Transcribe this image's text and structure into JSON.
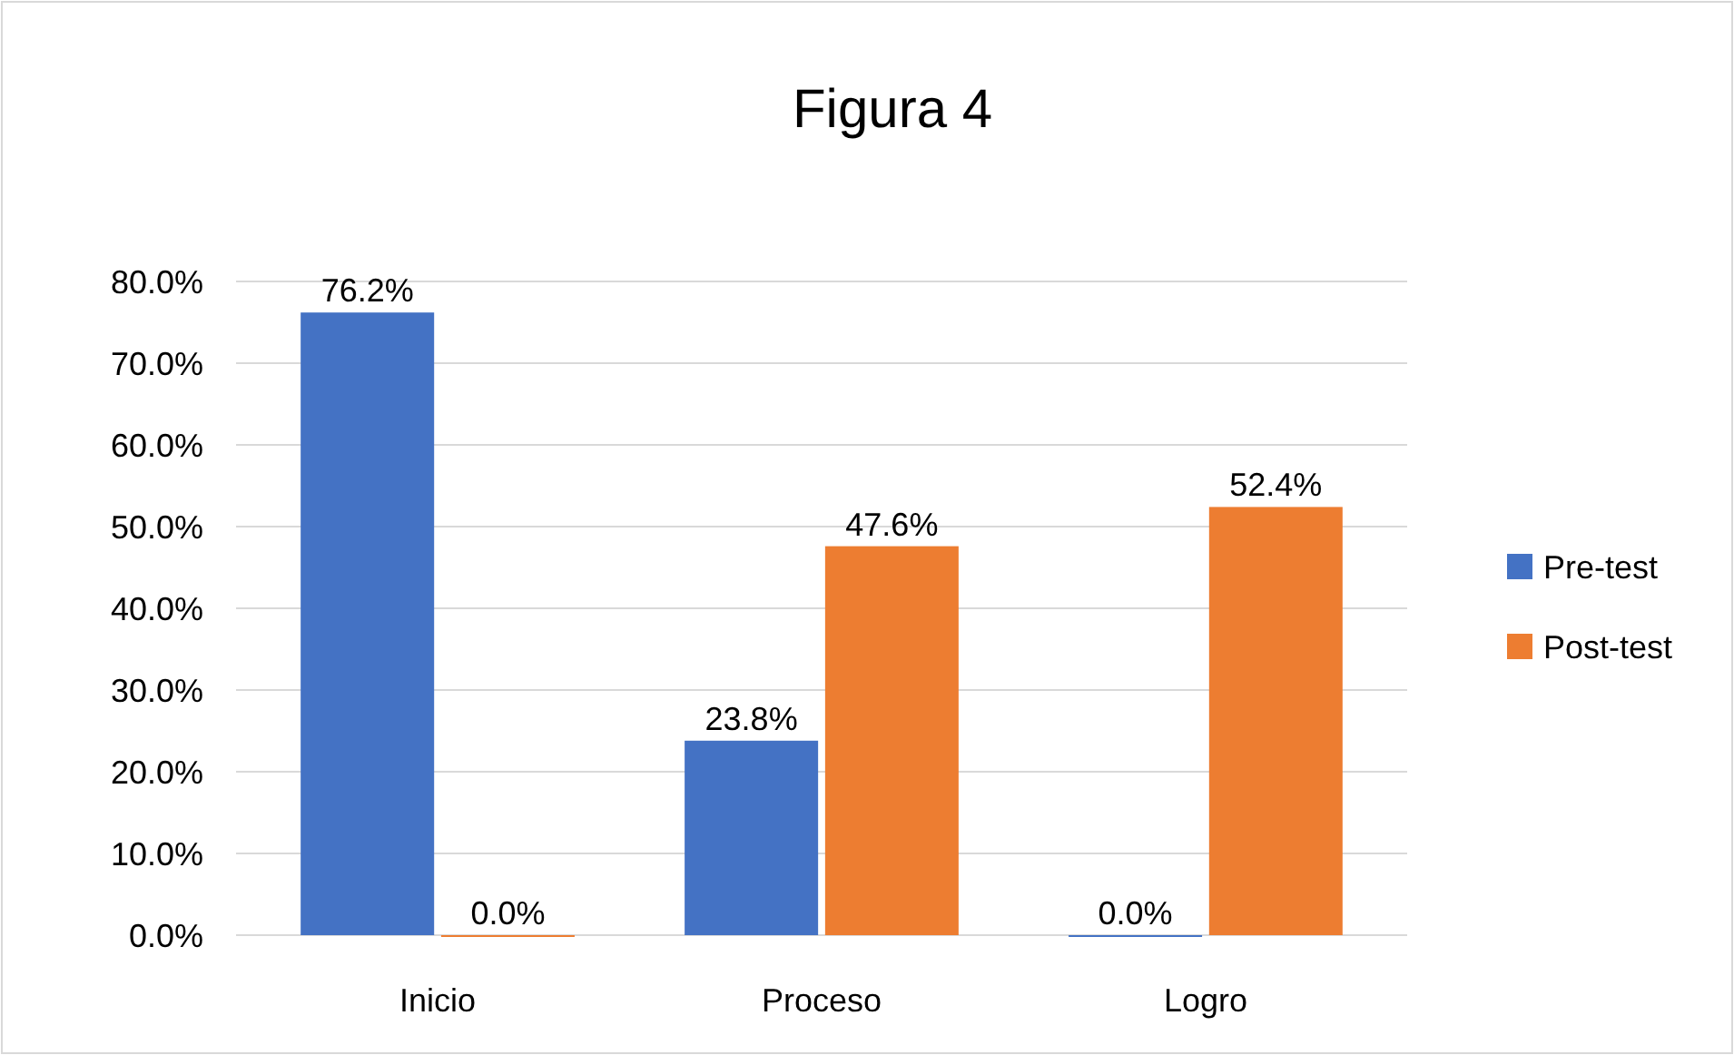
{
  "chart_data": {
    "type": "bar",
    "title": "Figura 4",
    "categories": [
      "Inicio",
      "Proceso",
      "Logro"
    ],
    "series": [
      {
        "name": "Pre-test",
        "color": "#4472c4",
        "values": [
          76.2,
          23.8,
          0.0
        ],
        "value_labels": [
          "76.2%",
          "23.8%",
          "0.0%"
        ]
      },
      {
        "name": "Post-test",
        "color": "#ed7d31",
        "values": [
          0.0,
          47.6,
          52.4
        ],
        "value_labels": [
          "0.0%",
          "47.6%",
          "52.4%"
        ]
      }
    ],
    "ylim": [
      0,
      80
    ],
    "yticks": [
      {
        "value": 0,
        "label": "0.0%"
      },
      {
        "value": 10,
        "label": "10.0%"
      },
      {
        "value": 20,
        "label": "20.0%"
      },
      {
        "value": 30,
        "label": "30.0%"
      },
      {
        "value": 40,
        "label": "40.0%"
      },
      {
        "value": 50,
        "label": "50.0%"
      },
      {
        "value": 60,
        "label": "60.0%"
      },
      {
        "value": 70,
        "label": "70.0%"
      },
      {
        "value": 80,
        "label": "80.0%"
      }
    ],
    "grid": "y",
    "legend": "right"
  }
}
